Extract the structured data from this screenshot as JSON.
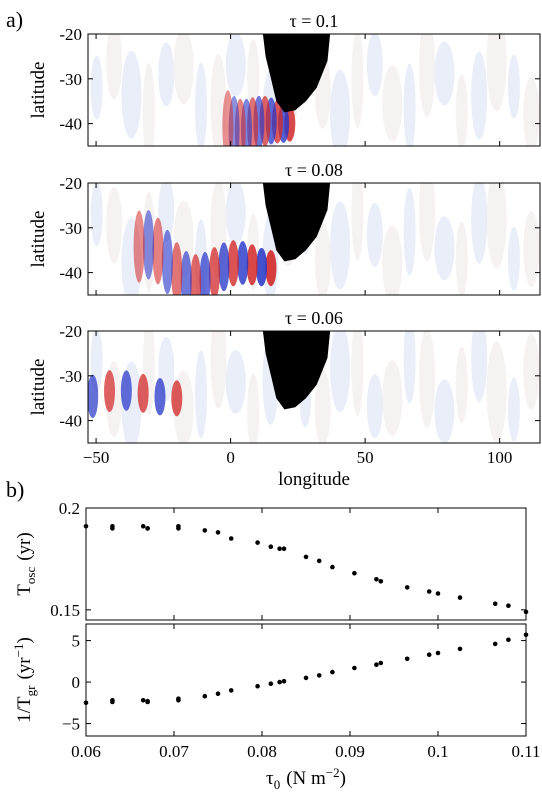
{
  "figure": {
    "panel_a_label": "a)",
    "panel_b_label": "b)"
  },
  "chart_data": [
    {
      "type": "heatmap",
      "panel": "a",
      "title": "τ = 0.1",
      "ylabel": "latitude",
      "xlabel": "",
      "xlim": [
        -53,
        115
      ],
      "ylim": [
        -45,
        -20
      ],
      "xticks": [
        -50,
        0,
        50,
        100
      ],
      "yticks": [
        -40,
        -30,
        -20
      ],
      "pattern": {
        "center_lon": 22,
        "center_lat": -38,
        "lon_extent": 20,
        "amplitude": 0.9,
        "west_reach": 0.15
      }
    },
    {
      "type": "heatmap",
      "panel": "a",
      "title": "τ = 0.08",
      "ylabel": "latitude",
      "xlabel": "",
      "xlim": [
        -53,
        115
      ],
      "ylim": [
        -45,
        -20
      ],
      "xticks": [
        -50,
        0,
        50,
        100
      ],
      "yticks": [
        -40,
        -30,
        -20
      ],
      "pattern": {
        "center_lon": 15,
        "center_lat": -37,
        "lon_extent": 35,
        "amplitude": 1.0,
        "west_reach": 0.4
      }
    },
    {
      "type": "heatmap",
      "panel": "a",
      "title": "τ = 0.06",
      "ylabel": "latitude",
      "xlabel": "longitude",
      "xlim": [
        -53,
        115
      ],
      "ylim": [
        -45,
        -20
      ],
      "xticks": [
        -50,
        0,
        50,
        100
      ],
      "yticks": [
        -40,
        -30,
        -20
      ],
      "pattern": {
        "center_lon": -20,
        "center_lat": -33,
        "lon_extent": 75,
        "amplitude": 0.8,
        "west_reach": 1.0
      }
    },
    {
      "type": "scatter",
      "panel": "b",
      "ylabel_main": "T",
      "ylabel_sub": "osc",
      "ylabel_unit": "(yr)",
      "xlim": [
        0.06,
        0.11
      ],
      "ylim": [
        0.145,
        0.2
      ],
      "yticks": [
        0.15,
        0.2
      ],
      "ytick_labels": [
        "0.15",
        "0.2"
      ],
      "x": [
        0.06,
        0.063,
        0.063,
        0.0665,
        0.067,
        0.067,
        0.0705,
        0.0705,
        0.0735,
        0.075,
        0.0765,
        0.0795,
        0.081,
        0.082,
        0.0825,
        0.085,
        0.0865,
        0.088,
        0.0905,
        0.093,
        0.0935,
        0.0965,
        0.099,
        0.1,
        0.1025,
        0.1065,
        0.108,
        0.11
      ],
      "y": [
        0.191,
        0.191,
        0.19,
        0.191,
        0.19,
        0.19,
        0.191,
        0.19,
        0.189,
        0.188,
        0.185,
        0.183,
        0.181,
        0.18,
        0.18,
        0.176,
        0.174,
        0.171,
        0.168,
        0.165,
        0.164,
        0.161,
        0.159,
        0.158,
        0.156,
        0.153,
        0.152,
        0.149
      ]
    },
    {
      "type": "scatter",
      "panel": "b",
      "ylabel_main": "1/T",
      "ylabel_sub": "gr",
      "ylabel_unit": "(yr",
      "ylabel_sup": "−1",
      "ylabel_close": ")",
      "xlabel_main": "τ",
      "xlabel_sub": "0",
      "xlabel_unit": "(N m",
      "xlabel_sup": "−2",
      "xlabel_close": ")",
      "xlim": [
        0.06,
        0.11
      ],
      "ylim": [
        -6.5,
        7
      ],
      "yticks": [
        -5,
        0,
        5
      ],
      "ytick_labels": [
        "−5",
        "0",
        "5"
      ],
      "xticks": [
        0.06,
        0.07,
        0.08,
        0.09,
        0.1,
        0.11
      ],
      "xtick_labels": [
        "0.06",
        "0.07",
        "0.08",
        "0.09",
        "0.1",
        "0.11"
      ],
      "x": [
        0.06,
        0.063,
        0.063,
        0.0665,
        0.067,
        0.067,
        0.0705,
        0.0705,
        0.0735,
        0.075,
        0.0765,
        0.0795,
        0.081,
        0.082,
        0.0825,
        0.085,
        0.0865,
        0.088,
        0.0905,
        0.093,
        0.0935,
        0.0965,
        0.099,
        0.1,
        0.1025,
        0.1065,
        0.108,
        0.11
      ],
      "y": [
        -2.5,
        -2.4,
        -2.2,
        -2.2,
        -2.4,
        -2.3,
        -2.2,
        -2.0,
        -1.7,
        -1.4,
        -1.0,
        -0.5,
        -0.2,
        0.0,
        0.1,
        0.5,
        0.8,
        1.2,
        1.7,
        2.1,
        2.3,
        2.8,
        3.3,
        3.5,
        4.0,
        4.6,
        5.1,
        5.7
      ]
    }
  ]
}
